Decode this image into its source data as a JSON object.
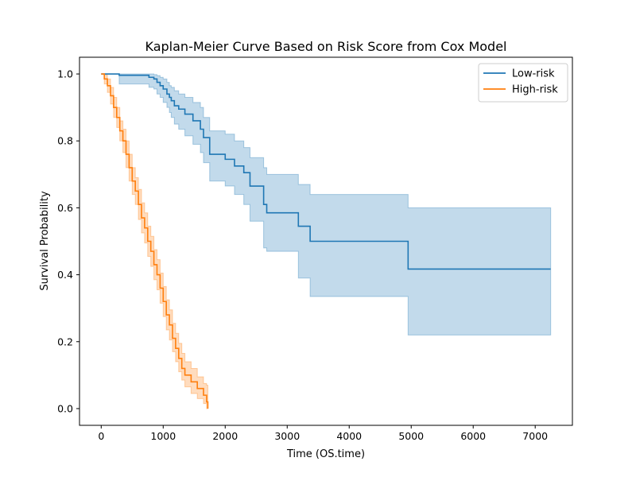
{
  "chart_data": {
    "type": "line",
    "title": "Kaplan-Meier Curve Based on Risk Score from Cox Model",
    "xlabel": "Time (OS.time)",
    "ylabel": "Survival Probability",
    "xlim": [
      -350,
      7600
    ],
    "ylim": [
      -0.05,
      1.05
    ],
    "xticks": [
      0,
      1000,
      2000,
      3000,
      4000,
      5000,
      6000,
      7000
    ],
    "yticks": [
      0.0,
      0.2,
      0.4,
      0.6,
      0.8,
      1.0
    ],
    "xtick_labels": [
      "0",
      "1000",
      "2000",
      "3000",
      "4000",
      "5000",
      "6000",
      "7000"
    ],
    "ytick_labels": [
      "0.0",
      "0.2",
      "0.4",
      "0.6",
      "0.8",
      "1.0"
    ],
    "grid": false,
    "legend_position": "top-right",
    "series": [
      {
        "name": "Low-risk",
        "color": "#1f77b4",
        "x": [
          0,
          290,
          770,
          850,
          900,
          950,
          1000,
          1060,
          1100,
          1130,
          1180,
          1250,
          1350,
          1480,
          1600,
          1650,
          1750,
          2000,
          2150,
          2300,
          2400,
          2620,
          2670,
          3180,
          3370,
          4950,
          7250
        ],
        "y": [
          1.0,
          0.996,
          0.99,
          0.985,
          0.975,
          0.965,
          0.955,
          0.94,
          0.93,
          0.92,
          0.905,
          0.895,
          0.88,
          0.86,
          0.835,
          0.81,
          0.76,
          0.745,
          0.725,
          0.705,
          0.665,
          0.61,
          0.585,
          0.545,
          0.5,
          0.417,
          0.417
        ],
        "ci_lower": [
          1.0,
          0.97,
          0.96,
          0.955,
          0.94,
          0.93,
          0.915,
          0.9,
          0.885,
          0.87,
          0.85,
          0.835,
          0.815,
          0.79,
          0.765,
          0.735,
          0.68,
          0.665,
          0.64,
          0.61,
          0.56,
          0.48,
          0.47,
          0.39,
          0.335,
          0.22,
          0.22
        ],
        "ci_upper": [
          1.0,
          1.0,
          1.0,
          0.998,
          0.995,
          0.99,
          0.985,
          0.975,
          0.965,
          0.96,
          0.95,
          0.94,
          0.93,
          0.915,
          0.9,
          0.87,
          0.83,
          0.82,
          0.8,
          0.78,
          0.75,
          0.72,
          0.7,
          0.67,
          0.64,
          0.6,
          0.6
        ]
      },
      {
        "name": "High-risk",
        "color": "#ff7f0e",
        "x": [
          0,
          50,
          100,
          150,
          200,
          250,
          300,
          350,
          400,
          450,
          500,
          550,
          600,
          650,
          700,
          750,
          800,
          850,
          900,
          950,
          1000,
          1050,
          1100,
          1150,
          1200,
          1250,
          1300,
          1350,
          1450,
          1550,
          1650,
          1700,
          1720
        ],
        "y": [
          1.0,
          0.985,
          0.965,
          0.935,
          0.9,
          0.87,
          0.83,
          0.8,
          0.76,
          0.72,
          0.68,
          0.65,
          0.61,
          0.57,
          0.54,
          0.5,
          0.47,
          0.43,
          0.4,
          0.36,
          0.32,
          0.28,
          0.25,
          0.21,
          0.18,
          0.15,
          0.12,
          0.1,
          0.08,
          0.06,
          0.04,
          0.02,
          0.0
        ],
        "ci_lower": [
          1.0,
          0.97,
          0.945,
          0.91,
          0.87,
          0.84,
          0.8,
          0.765,
          0.72,
          0.68,
          0.64,
          0.61,
          0.565,
          0.525,
          0.495,
          0.455,
          0.425,
          0.385,
          0.355,
          0.315,
          0.275,
          0.235,
          0.205,
          0.17,
          0.14,
          0.11,
          0.085,
          0.065,
          0.045,
          0.03,
          0.015,
          0.0,
          0.0
        ],
        "ci_upper": [
          1.0,
          0.998,
          0.985,
          0.96,
          0.93,
          0.9,
          0.86,
          0.835,
          0.8,
          0.76,
          0.72,
          0.69,
          0.655,
          0.615,
          0.585,
          0.545,
          0.515,
          0.475,
          0.445,
          0.405,
          0.365,
          0.325,
          0.295,
          0.255,
          0.225,
          0.195,
          0.165,
          0.14,
          0.12,
          0.095,
          0.075,
          0.07,
          0.07
        ]
      }
    ]
  }
}
